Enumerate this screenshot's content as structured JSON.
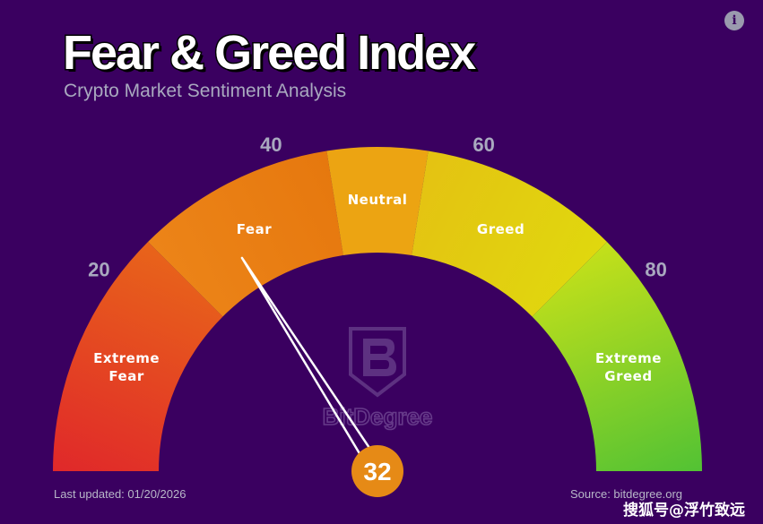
{
  "header": {
    "title": "Fear & Greed Index",
    "subtitle": "Crypto Market Sentiment Analysis",
    "info_icon": "i"
  },
  "chart_data": {
    "type": "gauge",
    "min": 0,
    "max": 100,
    "value": 32,
    "value_label": "32",
    "ticks": [
      {
        "value": 20,
        "label": "20"
      },
      {
        "value": 40,
        "label": "40"
      },
      {
        "value": 60,
        "label": "60"
      },
      {
        "value": 80,
        "label": "80"
      }
    ],
    "segments": [
      {
        "from": 0,
        "to": 25,
        "label": [
          "Extreme",
          "Fear"
        ],
        "colors": [
          "#e0282a",
          "#e8641a"
        ]
      },
      {
        "from": 25,
        "to": 45,
        "label": [
          "Fear"
        ],
        "colors": [
          "#ec8418",
          "#e6780e"
        ]
      },
      {
        "from": 45,
        "to": 55,
        "label": [
          "Neutral"
        ],
        "colors": [
          "#eca412",
          "#eca412"
        ]
      },
      {
        "from": 55,
        "to": 75,
        "label": [
          "Greed"
        ],
        "colors": [
          "#e4c212",
          "#e0d80e"
        ]
      },
      {
        "from": 75,
        "to": 100,
        "label": [
          "Extreme",
          "Greed"
        ],
        "colors": [
          "#c4e01a",
          "#52c234"
        ]
      }
    ],
    "needle_color": "#ffffff",
    "value_bubble_color": "#e68a16"
  },
  "logo": {
    "text": "BitDegree",
    "icon": "bitdegree-shield-icon"
  },
  "footer": {
    "updated": "Last updated: 01/20/2026",
    "source": "Source: bitdegree.org"
  },
  "watermark": "搜狐号@浮竹致远"
}
